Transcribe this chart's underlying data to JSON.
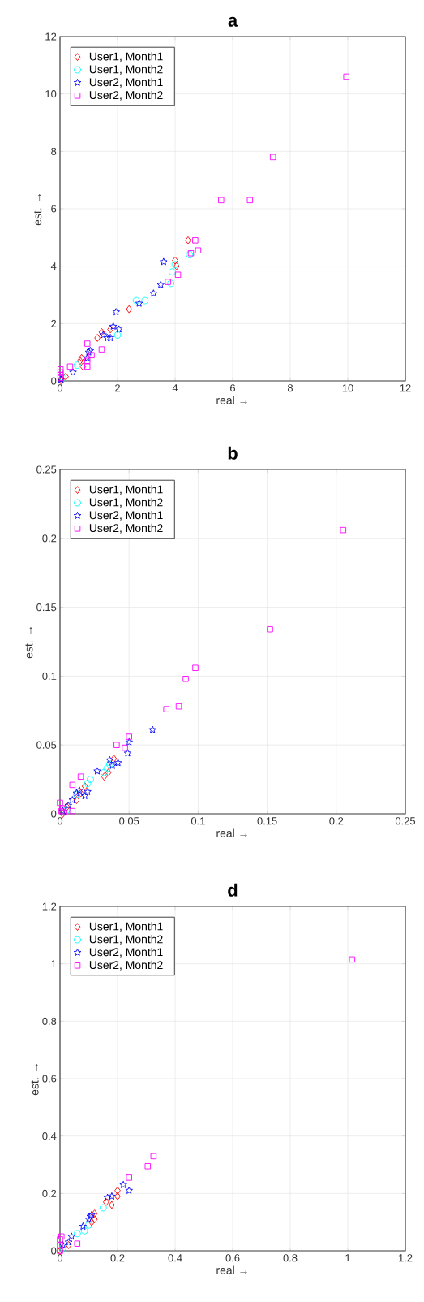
{
  "chart_data": [
    {
      "type": "scatter",
      "title": "a",
      "xlabel": "real →",
      "ylabel": "est. →",
      "xlim": [
        0,
        12
      ],
      "ylim": [
        0,
        12
      ],
      "xticks": [
        0,
        2,
        4,
        6,
        8,
        10,
        12
      ],
      "yticks": [
        0,
        2,
        4,
        6,
        8,
        10,
        12
      ],
      "grid": true,
      "legend": "top left",
      "series": [
        {
          "name": "User1, Month1",
          "color": "#ff0000",
          "marker": "diamond",
          "x": [
            0.05,
            0.2,
            0.75,
            0.8,
            0.7,
            1.3,
            1.45,
            1.75,
            2.4,
            4.0,
            4.05,
            4.45,
            0.05
          ],
          "values": [
            0.05,
            0.15,
            0.8,
            0.5,
            0.7,
            1.5,
            1.7,
            1.8,
            2.5,
            4.2,
            4.0,
            4.9,
            0.0
          ]
        },
        {
          "name": "User1, Month2",
          "color": "#00ffff",
          "marker": "circle",
          "x": [
            0.1,
            0.6,
            2.0,
            2.65,
            2.95,
            3.85,
            3.9,
            4.0,
            4.5
          ],
          "values": [
            0.1,
            0.55,
            1.6,
            2.8,
            2.8,
            3.4,
            3.8,
            4.05,
            4.4
          ]
        },
        {
          "name": "User2, Month1",
          "color": "#0000ff",
          "marker": "star",
          "x": [
            0.03,
            0.45,
            0.95,
            1.0,
            1.05,
            1.5,
            1.65,
            1.75,
            1.85,
            2.05,
            1.95,
            2.75,
            3.25,
            3.5,
            3.6
          ],
          "values": [
            0.05,
            0.3,
            0.8,
            1.0,
            1.05,
            1.6,
            1.5,
            1.5,
            1.9,
            1.8,
            2.4,
            2.7,
            3.05,
            3.35,
            4.15
          ]
        },
        {
          "name": "User2, Month2",
          "color": "#ff00ff",
          "marker": "square",
          "x": [
            0.02,
            0.02,
            0.02,
            0.02,
            0.35,
            0.95,
            0.95,
            0.95,
            1.1,
            1.45,
            3.75,
            4.1,
            4.55,
            4.7,
            4.8,
            5.6,
            6.6,
            7.4,
            9.95
          ],
          "values": [
            0.1,
            0.2,
            0.3,
            0.4,
            0.5,
            0.5,
            0.7,
            1.3,
            0.9,
            1.1,
            3.45,
            3.7,
            4.45,
            4.9,
            4.55,
            6.3,
            6.3,
            7.8,
            10.6
          ]
        }
      ]
    },
    {
      "type": "scatter",
      "title": "b",
      "xlabel": "real →",
      "ylabel": "est. →",
      "xlim": [
        0,
        0.25
      ],
      "ylim": [
        0,
        0.25
      ],
      "xticks": [
        0,
        0.05,
        0.1,
        0.15,
        0.2,
        0.25
      ],
      "yticks": [
        0,
        0.05,
        0.1,
        0.15,
        0.2,
        0.25
      ],
      "grid": true,
      "legend": "top left",
      "series": [
        {
          "name": "User1, Month1",
          "color": "#ff0000",
          "marker": "diamond",
          "x": [
            0.002,
            0.005,
            0.012,
            0.015,
            0.018,
            0.032,
            0.035,
            0.039
          ],
          "values": [
            0.0,
            0.005,
            0.01,
            0.015,
            0.02,
            0.027,
            0.03,
            0.04
          ]
        },
        {
          "name": "User1, Month2",
          "color": "#00ffff",
          "marker": "circle",
          "x": [
            0.005,
            0.02,
            0.022,
            0.032,
            0.034,
            0.036,
            0.012
          ],
          "values": [
            0.003,
            0.022,
            0.025,
            0.03,
            0.033,
            0.036,
            0.014
          ]
        },
        {
          "name": "User2, Month1",
          "color": "#0000ff",
          "marker": "star",
          "x": [
            0.002,
            0.006,
            0.009,
            0.012,
            0.014,
            0.018,
            0.02,
            0.027,
            0.036,
            0.038,
            0.042,
            0.049,
            0.05,
            0.067
          ],
          "values": [
            0.002,
            0.006,
            0.01,
            0.015,
            0.017,
            0.013,
            0.016,
            0.031,
            0.039,
            0.035,
            0.037,
            0.044,
            0.052,
            0.061
          ]
        },
        {
          "name": "User2, Month2",
          "color": "#ff00ff",
          "marker": "square",
          "x": [
            0.0,
            0.001,
            0.002,
            0.003,
            0.009,
            0.009,
            0.015,
            0.041,
            0.047,
            0.05,
            0.077,
            0.086,
            0.091,
            0.098,
            0.152,
            0.205
          ],
          "values": [
            0.008,
            0.002,
            0.004,
            0.001,
            0.002,
            0.021,
            0.027,
            0.05,
            0.048,
            0.056,
            0.076,
            0.078,
            0.098,
            0.106,
            0.134,
            0.206
          ]
        }
      ]
    },
    {
      "type": "scatter",
      "title": "d",
      "xlabel": "real →",
      "ylabel": "est. →",
      "xlim": [
        0,
        1.2
      ],
      "ylim": [
        0,
        1.2
      ],
      "xticks": [
        0,
        0.2,
        0.4,
        0.6,
        0.8,
        1,
        1.2
      ],
      "yticks": [
        0,
        0.2,
        0.4,
        0.6,
        0.8,
        1,
        1.2
      ],
      "grid": true,
      "legend": "top left",
      "series": [
        {
          "name": "User1, Month1",
          "color": "#ff0000",
          "marker": "diamond",
          "x": [
            0.0,
            0.03,
            0.11,
            0.12,
            0.12,
            0.16,
            0.18,
            0.2,
            0.2
          ],
          "values": [
            0.0,
            0.02,
            0.1,
            0.11,
            0.13,
            0.17,
            0.16,
            0.19,
            0.21
          ]
        },
        {
          "name": "User1, Month2",
          "color": "#00ffff",
          "marker": "circle",
          "x": [
            0.01,
            0.06,
            0.085,
            0.1,
            0.15
          ],
          "values": [
            0.01,
            0.06,
            0.07,
            0.09,
            0.15
          ]
        },
        {
          "name": "User2, Month1",
          "color": "#0000ff",
          "marker": "star",
          "x": [
            0.01,
            0.03,
            0.04,
            0.08,
            0.1,
            0.105,
            0.11,
            0.165,
            0.18,
            0.22,
            0.24
          ],
          "values": [
            0.02,
            0.03,
            0.05,
            0.085,
            0.11,
            0.12,
            0.125,
            0.185,
            0.19,
            0.23,
            0.21
          ]
        },
        {
          "name": "User2, Month2",
          "color": "#ff00ff",
          "marker": "square",
          "x": [
            0.0,
            0.0,
            0.0,
            0.005,
            0.06,
            0.24,
            0.305,
            0.325,
            1.015
          ],
          "values": [
            0.0,
            0.02,
            0.04,
            0.05,
            0.025,
            0.255,
            0.295,
            0.33,
            1.015
          ]
        }
      ]
    }
  ]
}
